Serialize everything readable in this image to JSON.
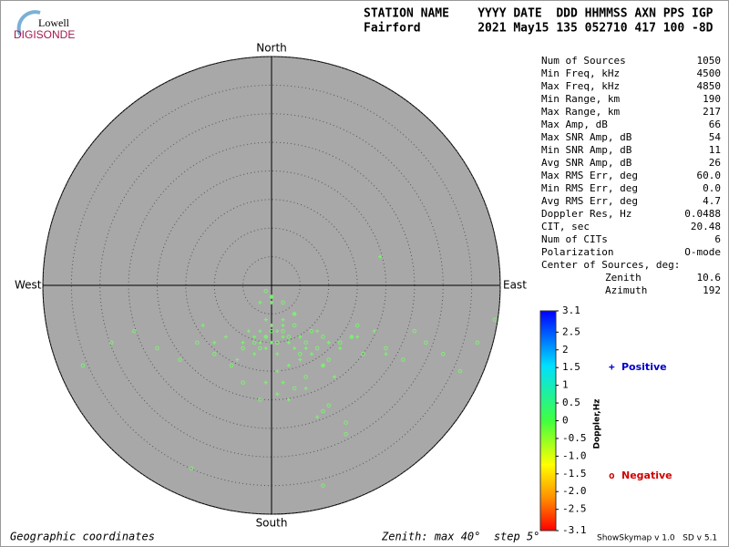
{
  "logo": {
    "top": "Lowell",
    "bottom": "DIGISONDE"
  },
  "header": {
    "columns": "STATION NAME    YYYY DATE  DDD HHMMSS AXN PPS IGP",
    "values": "Fairford        2021 May15 135 052710 417 100 -8D"
  },
  "stats": [
    [
      "Num of Sources",
      "1050"
    ],
    [
      "Min Freq, kHz",
      "4500"
    ],
    [
      "Max Freq, kHz",
      "4850"
    ],
    [
      "Min Range, km",
      "190"
    ],
    [
      "Max Range, km",
      "217"
    ],
    [
      "Max Amp, dB",
      "66"
    ],
    [
      "Max SNR Amp, dB",
      "54"
    ],
    [
      "Min SNR Amp, dB",
      "11"
    ],
    [
      "Avg SNR Amp, dB",
      "26"
    ],
    [
      "Max RMS Err, deg",
      "60.0"
    ],
    [
      "Min RMS Err, deg",
      "0.0"
    ],
    [
      "Avg RMS Err, deg",
      "4.7"
    ],
    [
      "Doppler Res, Hz",
      "0.0488"
    ],
    [
      "CIT, sec",
      "20.48"
    ],
    [
      "Num of CITs",
      "6"
    ],
    [
      "Polarization",
      "O-mode"
    ]
  ],
  "center": {
    "title": "Center of Sources, deg:",
    "rows": [
      [
        "Zenith",
        "10.6"
      ],
      [
        "Azimuth",
        "192"
      ]
    ]
  },
  "footer": {
    "coordinates": "Geographic coordinates",
    "zenith": "Zenith: max 40°  step 5°",
    "version": "ShowSkymap v 1.0   SD v 5.1"
  },
  "chart_data": {
    "type": "scatter",
    "directions": {
      "north": "North",
      "south": "South",
      "west": "West",
      "east": "East"
    },
    "rlim": [
      0,
      40
    ],
    "rticks": [
      5,
      10,
      15,
      20,
      25,
      30,
      35,
      40
    ],
    "series": [
      {
        "name": "Positive",
        "marker": "+",
        "color": "#7cf070",
        "legend_color": "#0000c8",
        "x": [
          -2,
          -1,
          0,
          1,
          2,
          -3,
          3,
          -4,
          4,
          0,
          -1,
          1,
          2,
          -2,
          5,
          6,
          -5,
          7,
          8,
          10,
          12,
          14,
          -6,
          -8,
          3,
          1,
          -1,
          9,
          11,
          4,
          0,
          -3,
          2,
          6,
          15,
          18,
          20,
          -10,
          -12,
          1,
          3,
          5,
          -2,
          0,
          19,
          8,
          -1,
          2
        ],
        "y": [
          -8,
          -9,
          -10,
          -8,
          -9,
          -9,
          -10,
          -8,
          -11,
          -7,
          -11,
          -12,
          -7,
          -10,
          -9,
          -11,
          -10,
          -12,
          -8,
          -10,
          -11,
          -9,
          -13,
          -9,
          -14,
          -15,
          -6,
          -14,
          -16,
          -5,
          -3,
          -12,
          -17,
          -18,
          -9,
          -8,
          -12,
          -10,
          -7,
          -19,
          -20,
          -13,
          -3,
          -2,
          5,
          -23,
          -17,
          -6
        ]
      },
      {
        "name": "Negative",
        "marker": "o",
        "color": "#7cf070",
        "legend_color": "#d00000",
        "x": [
          -1,
          0,
          1,
          -2,
          2,
          3,
          -3,
          4,
          5,
          6,
          7,
          8,
          9,
          10,
          12,
          14,
          16,
          -5,
          -7,
          -10,
          -13,
          -16,
          -20,
          -24,
          -28,
          -33,
          20,
          23,
          25,
          27,
          30,
          33,
          36,
          39,
          0,
          2,
          -1,
          4,
          9,
          13,
          13,
          -14,
          6,
          9,
          4,
          -2,
          10,
          -5,
          15,
          9
        ],
        "y": [
          -9,
          -8,
          -10,
          -11,
          -8,
          -9,
          -10,
          -7,
          -12,
          -10,
          -8,
          -11,
          -9,
          -13,
          -10,
          -9,
          -12,
          -11,
          -14,
          -12,
          -10,
          -13,
          -11,
          -8,
          -10,
          -14,
          -11,
          -13,
          -8,
          -10,
          -12,
          -15,
          -10,
          -6,
          -2,
          -3,
          -1,
          -18,
          -22,
          -24,
          -26,
          -32,
          -16,
          -14,
          -5,
          -20,
          -21,
          -17,
          -7,
          -35
        ]
      }
    ],
    "colorbar": {
      "label": "Doppler,Hz",
      "lim": [
        -3.1,
        3.1
      ],
      "ticks": [
        3.1,
        2.5,
        2,
        1.5,
        1,
        0.5,
        0,
        -0.5,
        {
          "value": -1,
          "label": "-1.0"
        },
        -1.5,
        {
          "value": -2,
          "label": "-2.0"
        },
        -2.5,
        -3.1
      ]
    }
  }
}
